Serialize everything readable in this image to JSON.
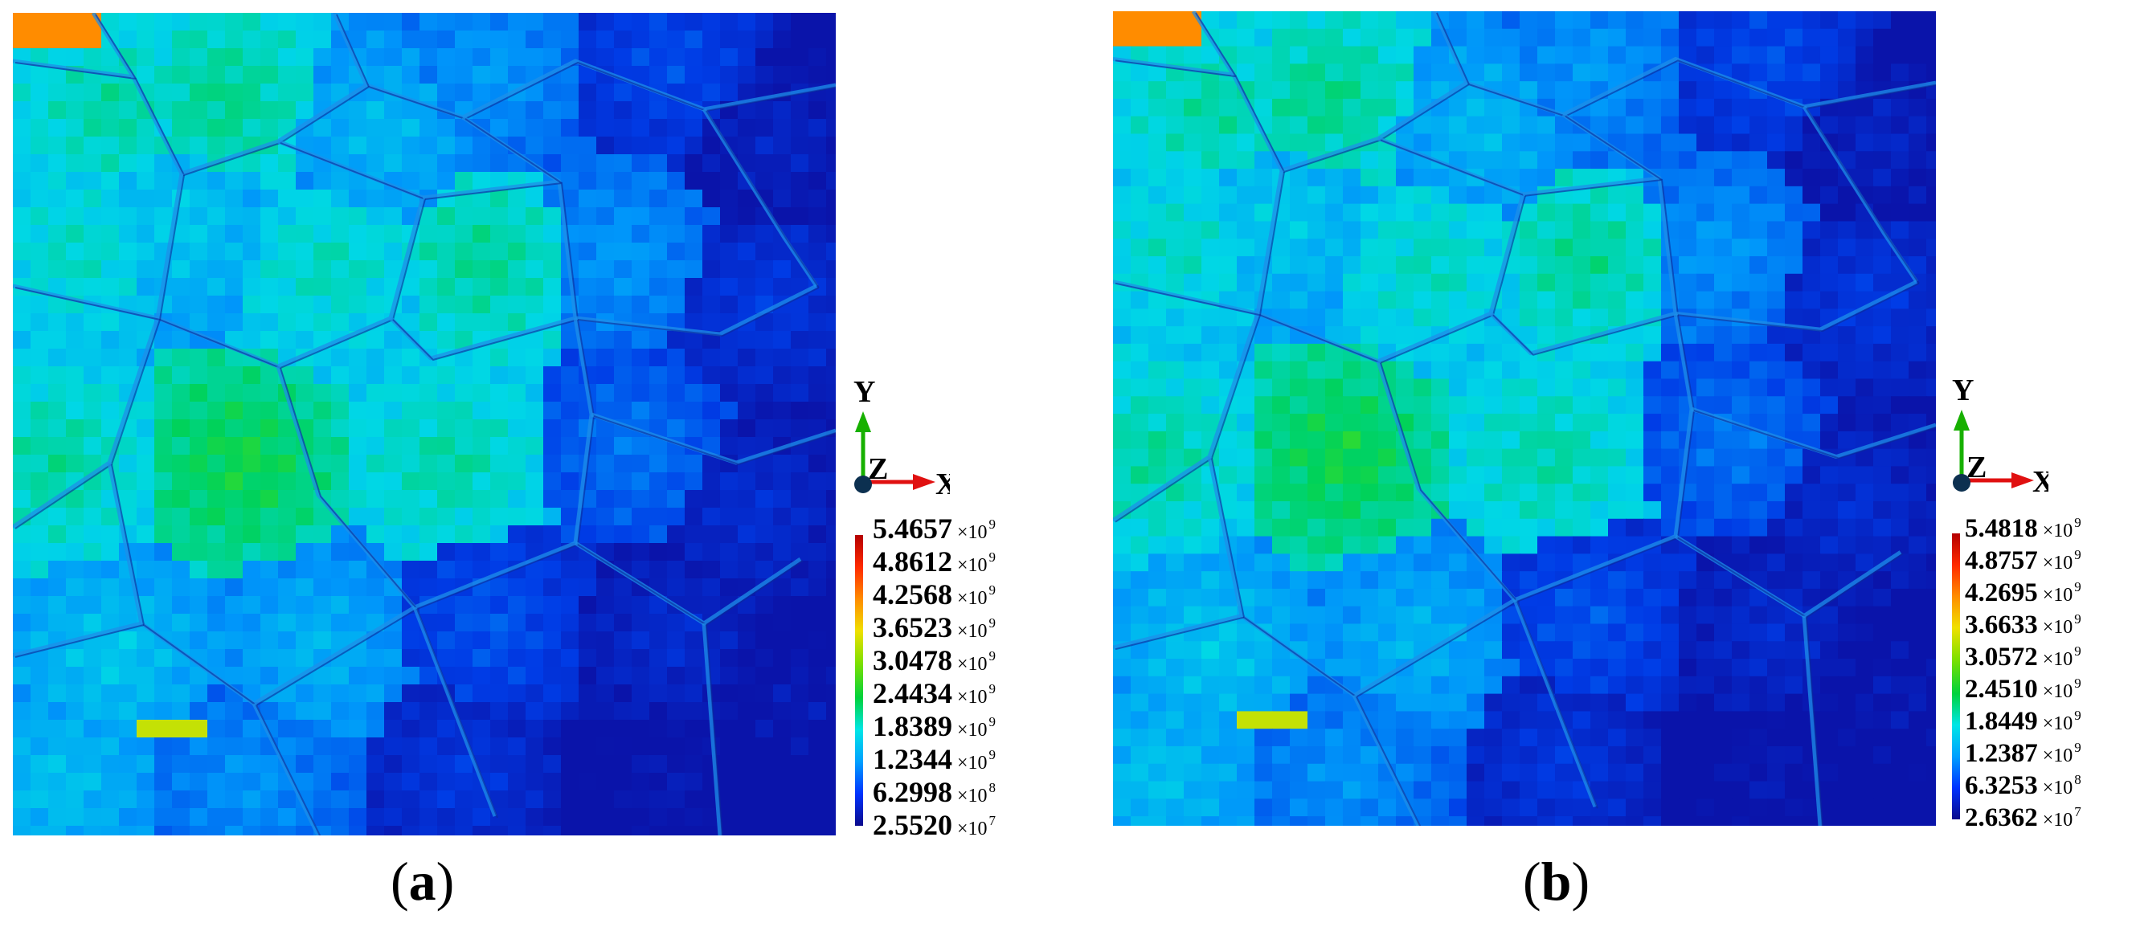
{
  "panels": [
    {
      "id": "a",
      "caption_open": "(",
      "caption_letter": "a",
      "caption_close": ")",
      "axes": {
        "y": "Y",
        "z": "Z",
        "x": "X"
      },
      "legend": [
        {
          "mantissa": "5.4657",
          "times": "×10",
          "exponent": "9"
        },
        {
          "mantissa": "4.8612",
          "times": "×10",
          "exponent": "9"
        },
        {
          "mantissa": "4.2568",
          "times": "×10",
          "exponent": "9"
        },
        {
          "mantissa": "3.6523",
          "times": "×10",
          "exponent": "9"
        },
        {
          "mantissa": "3.0478",
          "times": "×10",
          "exponent": "9"
        },
        {
          "mantissa": "2.4434",
          "times": "×10",
          "exponent": "9"
        },
        {
          "mantissa": "1.8389",
          "times": "×10",
          "exponent": "9"
        },
        {
          "mantissa": "1.2344",
          "times": "×10",
          "exponent": "9"
        },
        {
          "mantissa": "6.2998",
          "times": "×10",
          "exponent": "8"
        },
        {
          "mantissa": "2.5520",
          "times": "×10",
          "exponent": "7"
        }
      ]
    },
    {
      "id": "b",
      "caption_open": "(",
      "caption_letter": "b",
      "caption_close": ")",
      "axes": {
        "y": "Y",
        "z": "Z",
        "x": "X"
      },
      "legend": [
        {
          "mantissa": "5.4818",
          "times": "×10",
          "exponent": "9"
        },
        {
          "mantissa": "4.8757",
          "times": "×10",
          "exponent": "9"
        },
        {
          "mantissa": "4.2695",
          "times": "×10",
          "exponent": "9"
        },
        {
          "mantissa": "3.6633",
          "times": "×10",
          "exponent": "9"
        },
        {
          "mantissa": "3.0572",
          "times": "×10",
          "exponent": "9"
        },
        {
          "mantissa": "2.4510",
          "times": "×10",
          "exponent": "9"
        },
        {
          "mantissa": "1.8449",
          "times": "×10",
          "exponent": "9"
        },
        {
          "mantissa": "1.2387",
          "times": "×10",
          "exponent": "9"
        },
        {
          "mantissa": "6.3253",
          "times": "×10",
          "exponent": "8"
        },
        {
          "mantissa": "2.6362",
          "times": "×10",
          "exponent": "7"
        }
      ]
    }
  ],
  "colors": {
    "colormap": [
      "#0a0a8c",
      "#0033ff",
      "#00a0ff",
      "#00e6e6",
      "#00d23c",
      "#7ee000",
      "#f0e000",
      "#ff8c00",
      "#ff2a00",
      "#b40000"
    ],
    "grain_boundary": "#1e8fe8",
    "hotspot": "#ff6a1a"
  }
}
